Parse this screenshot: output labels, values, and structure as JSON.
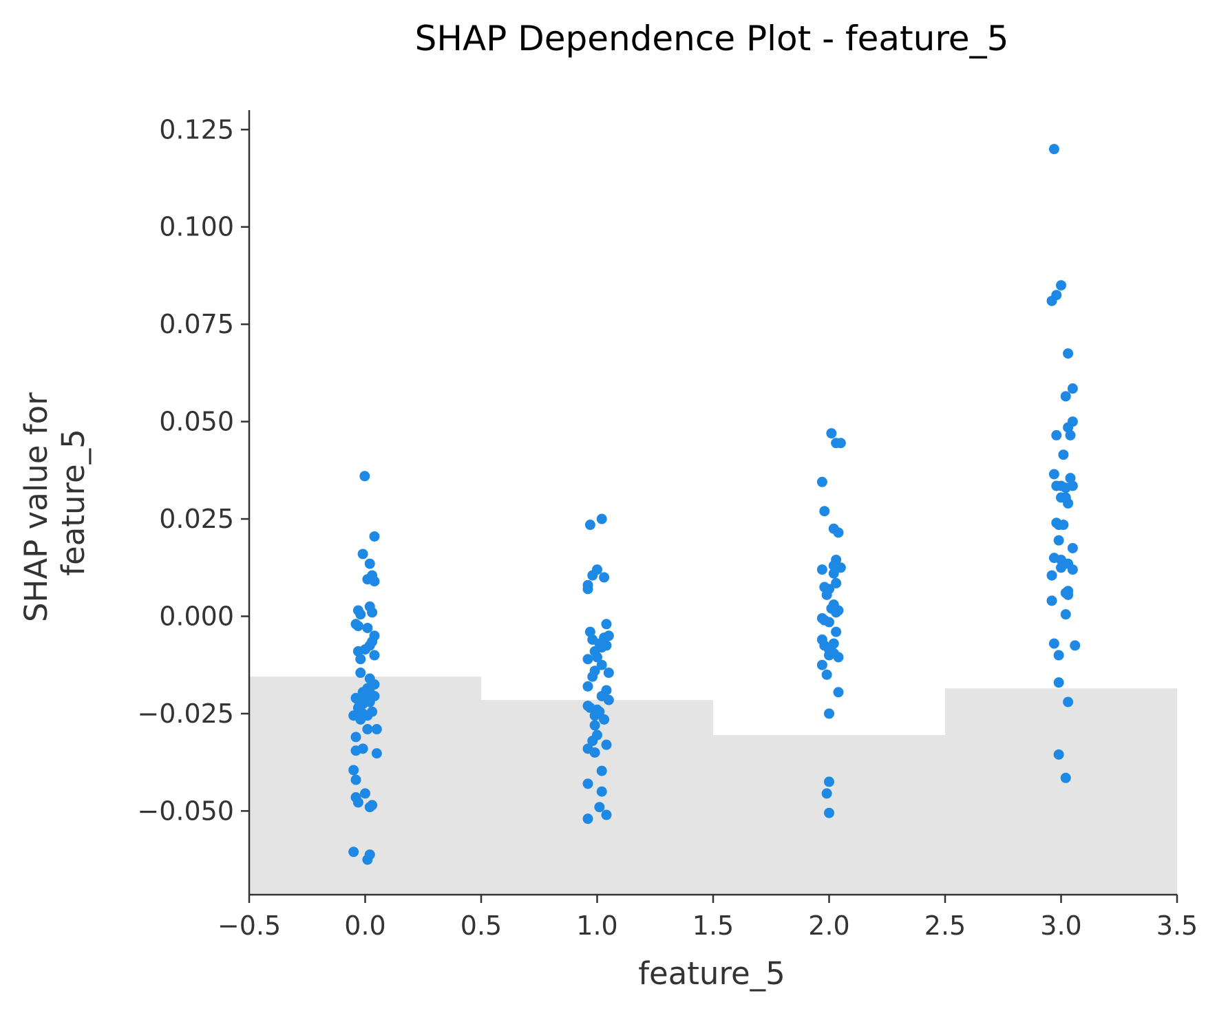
{
  "chart_data": {
    "type": "scatter",
    "title": "SHAP Dependence Plot - feature_5",
    "xlabel": "feature_5",
    "ylabel_lines": [
      "SHAP value for",
      "feature_5"
    ],
    "xlim": [
      -0.5,
      3.5
    ],
    "ylim": [
      -0.0715,
      0.13
    ],
    "x_ticks": [
      -0.5,
      0.0,
      0.5,
      1.0,
      1.5,
      2.0,
      2.5,
      3.0,
      3.5
    ],
    "x_tick_labels": [
      "−0.5",
      "0.0",
      "0.5",
      "1.0",
      "1.5",
      "2.0",
      "2.5",
      "3.0",
      "3.5"
    ],
    "y_ticks": [
      0.125,
      0.1,
      0.075,
      0.05,
      0.025,
      0.0,
      -0.025,
      -0.05
    ],
    "y_tick_labels": [
      "0.125",
      "0.100",
      "0.075",
      "0.050",
      "0.025",
      "0.000",
      "−0.025",
      "−0.050"
    ],
    "grid": false,
    "colors": {
      "point": "#1E88E5",
      "histogram": "#e4e4e4",
      "axis": "#333333"
    },
    "histogram_background": {
      "bins": [
        {
          "x0": -0.5,
          "x1": 0.5,
          "top": -0.0155
        },
        {
          "x0": 0.5,
          "x1": 1.5,
          "top": -0.0215
        },
        {
          "x0": 1.5,
          "x1": 2.5,
          "top": -0.0305
        },
        {
          "x0": 2.5,
          "x1": 3.5,
          "top": -0.0185
        }
      ]
    },
    "series": [
      {
        "points": [
          [
            -0.002,
            0.036
          ],
          [
            0.04,
            0.0205
          ],
          [
            -0.01,
            0.016
          ],
          [
            0.02,
            0.0135
          ],
          [
            0.03,
            0.0105
          ],
          [
            0.01,
            0.0095
          ],
          [
            0.04,
            0.009
          ],
          [
            -0.03,
            0.0015
          ],
          [
            -0.02,
            0.0005
          ],
          [
            0.02,
            0.0025
          ],
          [
            0.03,
            0.001
          ],
          [
            -0.04,
            -0.002
          ],
          [
            -0.03,
            -0.0025
          ],
          [
            0.01,
            -0.003
          ],
          [
            0.04,
            -0.005
          ],
          [
            0.03,
            -0.0065
          ],
          [
            0.02,
            -0.0075
          ],
          [
            0.0,
            -0.0085
          ],
          [
            -0.03,
            -0.009
          ],
          [
            0.04,
            -0.01
          ],
          [
            -0.02,
            -0.011
          ],
          [
            -0.02,
            -0.0145
          ],
          [
            0.02,
            -0.016
          ],
          [
            0.04,
            -0.0175
          ],
          [
            0.01,
            -0.0185
          ],
          [
            -0.01,
            -0.0195
          ],
          [
            0.0,
            -0.02
          ],
          [
            0.02,
            -0.0195
          ],
          [
            0.03,
            -0.0205
          ],
          [
            0.04,
            -0.0205
          ],
          [
            -0.04,
            -0.021
          ],
          [
            -0.03,
            -0.0215
          ],
          [
            -0.01,
            -0.0225
          ],
          [
            0.02,
            -0.022
          ],
          [
            -0.03,
            -0.0235
          ],
          [
            0.03,
            -0.0245
          ],
          [
            -0.01,
            -0.025
          ],
          [
            0.01,
            -0.0255
          ],
          [
            -0.05,
            -0.0255
          ],
          [
            -0.02,
            -0.0265
          ],
          [
            0.01,
            -0.029
          ],
          [
            0.05,
            -0.029
          ],
          [
            -0.04,
            -0.031
          ],
          [
            -0.04,
            -0.0345
          ],
          [
            -0.01,
            -0.034
          ],
          [
            0.05,
            -0.0352
          ],
          [
            -0.05,
            -0.0395
          ],
          [
            -0.04,
            -0.042
          ],
          [
            -0.04,
            -0.0465
          ],
          [
            0.0,
            -0.0455
          ],
          [
            -0.03,
            -0.0478
          ],
          [
            0.03,
            -0.0485
          ],
          [
            0.02,
            -0.049
          ],
          [
            0.02,
            -0.0612
          ],
          [
            0.01,
            -0.0625
          ],
          [
            -0.05,
            -0.0605
          ],
          [
            0.97,
            0.0235
          ],
          [
            1.02,
            0.025
          ],
          [
            1.0,
            0.012
          ],
          [
            0.98,
            0.0105
          ],
          [
            1.03,
            0.01
          ],
          [
            0.96,
            0.008
          ],
          [
            0.96,
            0.007
          ],
          [
            1.04,
            -0.002
          ],
          [
            0.97,
            -0.004
          ],
          [
            1.05,
            -0.005
          ],
          [
            1.03,
            -0.0055
          ],
          [
            0.98,
            -0.006
          ],
          [
            1.01,
            -0.007
          ],
          [
            1.04,
            -0.0075
          ],
          [
            1.02,
            -0.008
          ],
          [
            0.99,
            -0.009
          ],
          [
            1.0,
            -0.0105
          ],
          [
            0.96,
            -0.011
          ],
          [
            1.02,
            -0.0125
          ],
          [
            0.99,
            -0.014
          ],
          [
            1.05,
            -0.0145
          ],
          [
            0.98,
            -0.0155
          ],
          [
            0.96,
            -0.018
          ],
          [
            1.04,
            -0.019
          ],
          [
            1.02,
            -0.0205
          ],
          [
            1.05,
            -0.0215
          ],
          [
            0.96,
            -0.023
          ],
          [
            0.97,
            -0.0235
          ],
          [
            1.0,
            -0.024
          ],
          [
            1.01,
            -0.0245
          ],
          [
            0.99,
            -0.0255
          ],
          [
            1.03,
            -0.0265
          ],
          [
            0.99,
            -0.028
          ],
          [
            1.0,
            -0.0305
          ],
          [
            0.98,
            -0.032
          ],
          [
            1.04,
            -0.033
          ],
          [
            0.96,
            -0.034
          ],
          [
            0.99,
            -0.035
          ],
          [
            1.02,
            -0.0397
          ],
          [
            0.96,
            -0.043
          ],
          [
            1.02,
            -0.045
          ],
          [
            1.01,
            -0.049
          ],
          [
            1.04,
            -0.051
          ],
          [
            0.96,
            -0.052
          ],
          [
            2.01,
            0.047
          ],
          [
            2.03,
            0.0445
          ],
          [
            2.05,
            0.0445
          ],
          [
            1.97,
            0.0345
          ],
          [
            1.98,
            0.027
          ],
          [
            2.02,
            0.0225
          ],
          [
            2.04,
            0.0215
          ],
          [
            2.03,
            0.0145
          ],
          [
            2.02,
            0.013
          ],
          [
            2.05,
            0.0125
          ],
          [
            1.97,
            0.012
          ],
          [
            2.02,
            0.011
          ],
          [
            1.98,
            0.0075
          ],
          [
            2.0,
            0.007
          ],
          [
            2.03,
            0.0085
          ],
          [
            1.99,
            0.0055
          ],
          [
            2.02,
            0.003
          ],
          [
            2.01,
            0.002
          ],
          [
            2.04,
            0.0015
          ],
          [
            2.03,
            0.001
          ],
          [
            1.97,
            -0.0005
          ],
          [
            1.98,
            -0.001
          ],
          [
            2.0,
            -0.0015
          ],
          [
            2.03,
            -0.004
          ],
          [
            1.97,
            -0.006
          ],
          [
            2.02,
            -0.007
          ],
          [
            1.98,
            -0.0075
          ],
          [
            2.0,
            -0.0085
          ],
          [
            2.02,
            -0.0095
          ],
          [
            2.0,
            -0.01
          ],
          [
            2.04,
            -0.0105
          ],
          [
            1.97,
            -0.0125
          ],
          [
            1.99,
            -0.015
          ],
          [
            2.04,
            -0.0195
          ],
          [
            2.0,
            -0.025
          ],
          [
            2.0,
            -0.0425
          ],
          [
            1.99,
            -0.0455
          ],
          [
            2.0,
            -0.0505
          ],
          [
            2.97,
            0.12
          ],
          [
            3.0,
            0.085
          ],
          [
            2.98,
            0.0825
          ],
          [
            2.96,
            0.081
          ],
          [
            3.03,
            0.0675
          ],
          [
            3.05,
            0.0585
          ],
          [
            3.02,
            0.0565
          ],
          [
            3.05,
            0.05
          ],
          [
            3.03,
            0.0485
          ],
          [
            2.98,
            0.0465
          ],
          [
            3.04,
            0.0465
          ],
          [
            3.01,
            0.0415
          ],
          [
            2.97,
            0.0365
          ],
          [
            3.04,
            0.0355
          ],
          [
            2.98,
            0.0335
          ],
          [
            3.0,
            0.0335
          ],
          [
            3.05,
            0.0335
          ],
          [
            3.02,
            0.033
          ],
          [
            3.0,
            0.0305
          ],
          [
            3.02,
            0.0305
          ],
          [
            3.03,
            0.029
          ],
          [
            2.98,
            0.024
          ],
          [
            2.99,
            0.0235
          ],
          [
            3.01,
            0.0235
          ],
          [
            2.99,
            0.0195
          ],
          [
            3.05,
            0.0175
          ],
          [
            2.97,
            0.015
          ],
          [
            3.0,
            0.0145
          ],
          [
            3.03,
            0.0135
          ],
          [
            3.0,
            0.0125
          ],
          [
            3.05,
            0.012
          ],
          [
            2.96,
            0.0105
          ],
          [
            3.03,
            0.0065
          ],
          [
            3.02,
            0.006
          ],
          [
            3.03,
            0.0055
          ],
          [
            2.96,
            0.004
          ],
          [
            3.02,
            0.0005
          ],
          [
            2.97,
            -0.007
          ],
          [
            3.06,
            -0.0075
          ],
          [
            2.99,
            -0.01
          ],
          [
            2.99,
            -0.017
          ],
          [
            3.03,
            -0.022
          ],
          [
            2.99,
            -0.0355
          ],
          [
            3.02,
            -0.0415
          ]
        ]
      }
    ]
  }
}
